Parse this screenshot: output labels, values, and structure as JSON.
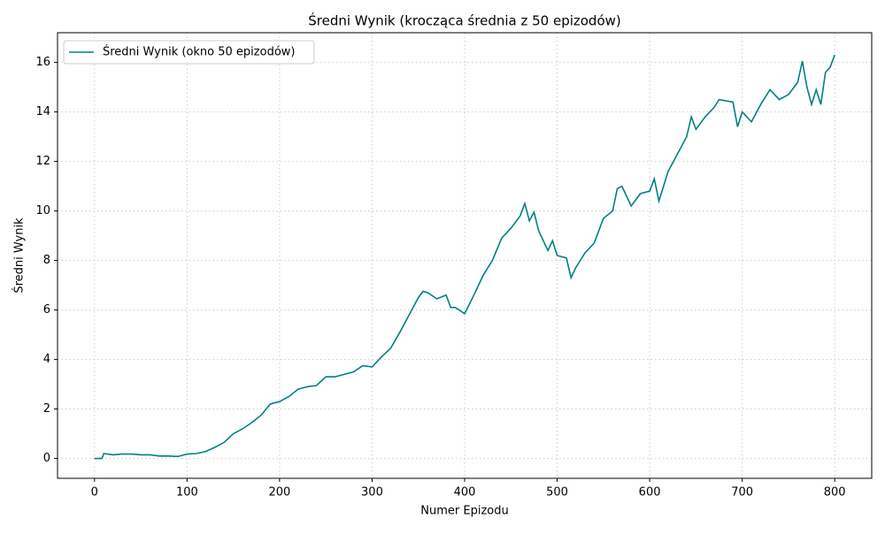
{
  "chart_data": {
    "type": "line",
    "title": "Średni Wynik (krocząca średnia z 50 epizodów)",
    "xlabel": "Numer Epizodu",
    "ylabel": "Średni Wynik",
    "x": [
      0,
      5,
      8,
      10,
      20,
      30,
      40,
      50,
      60,
      70,
      80,
      90,
      100,
      110,
      120,
      130,
      140,
      150,
      160,
      170,
      180,
      190,
      200,
      210,
      220,
      230,
      240,
      250,
      260,
      270,
      280,
      290,
      300,
      310,
      320,
      330,
      340,
      350,
      355,
      360,
      370,
      380,
      385,
      390,
      400,
      410,
      420,
      430,
      440,
      450,
      460,
      465,
      470,
      475,
      480,
      490,
      495,
      500,
      510,
      515,
      520,
      530,
      540,
      550,
      560,
      565,
      570,
      580,
      590,
      600,
      605,
      610,
      620,
      630,
      640,
      645,
      650,
      660,
      670,
      675,
      690,
      695,
      700,
      710,
      720,
      730,
      740,
      750,
      760,
      765,
      770,
      775,
      780,
      785,
      790,
      795,
      800
    ],
    "series": [
      {
        "name": "Średni Wynik (okno 50 epizodów)",
        "color": "#008080",
        "values": [
          0,
          0,
          0,
          0.2,
          0.15,
          0.18,
          0.18,
          0.15,
          0.15,
          0.1,
          0.1,
          0.08,
          0.18,
          0.2,
          0.28,
          0.45,
          0.65,
          1.0,
          1.2,
          1.45,
          1.75,
          2.2,
          2.3,
          2.5,
          2.8,
          2.9,
          2.95,
          3.3,
          3.3,
          3.4,
          3.5,
          3.75,
          3.7,
          4.1,
          4.45,
          5.1,
          5.8,
          6.5,
          6.75,
          6.7,
          6.45,
          6.6,
          6.1,
          6.1,
          5.85,
          6.6,
          7.4,
          8.0,
          8.9,
          9.3,
          9.8,
          10.3,
          9.6,
          9.95,
          9.2,
          8.4,
          8.8,
          8.2,
          8.1,
          7.3,
          7.7,
          8.3,
          8.7,
          9.7,
          10.0,
          10.9,
          11.0,
          10.2,
          10.7,
          10.8,
          11.3,
          10.4,
          11.6,
          12.3,
          13.0,
          13.8,
          13.3,
          13.8,
          14.2,
          14.5,
          14.4,
          13.4,
          14.0,
          13.6,
          14.3,
          14.9,
          14.5,
          14.7,
          15.2,
          16.05,
          15.0,
          14.3,
          14.9,
          14.3,
          15.6,
          15.8,
          16.3
        ]
      }
    ],
    "xlim": [
      -40,
      840
    ],
    "ylim": [
      -0.8,
      17.2
    ],
    "xticks": [
      0,
      100,
      200,
      300,
      400,
      500,
      600,
      700,
      800
    ],
    "yticks": [
      0,
      2,
      4,
      6,
      8,
      10,
      12,
      14,
      16
    ],
    "grid": true,
    "legend": "upper left"
  }
}
